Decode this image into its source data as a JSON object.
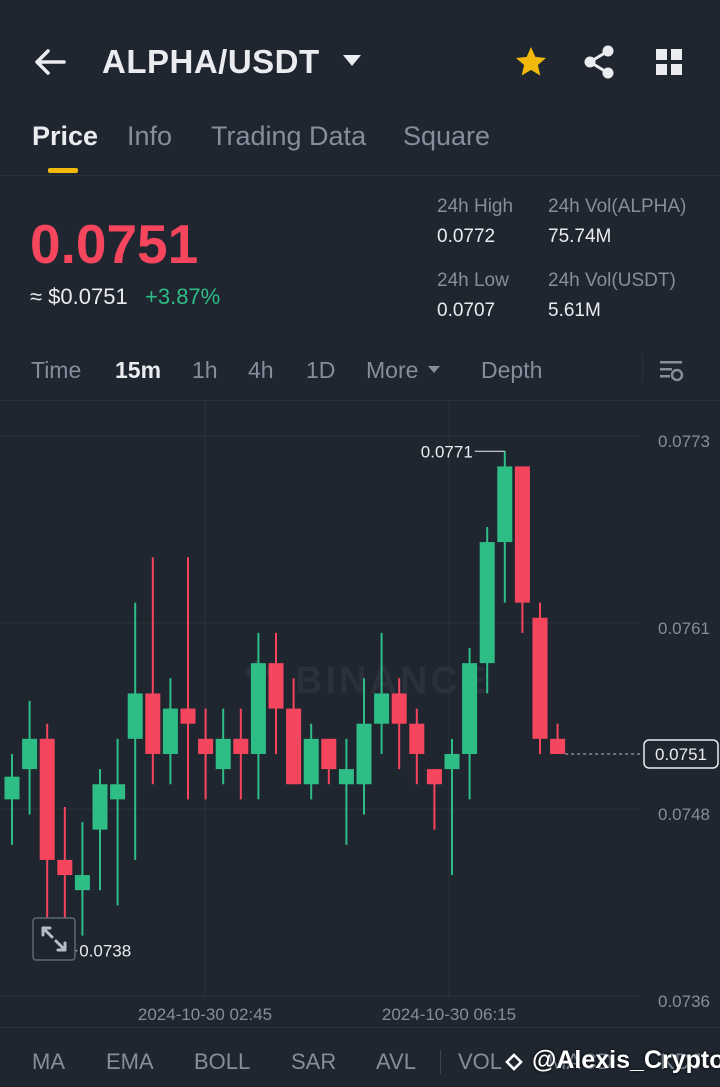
{
  "header": {
    "title": "ALPHA/USDT",
    "icons": [
      "back-arrow-icon",
      "chevron-down-icon",
      "star-icon",
      "share-icon",
      "grid-icon"
    ],
    "star_color": "#f0b90b"
  },
  "tabs": [
    {
      "label": "Price",
      "active": true
    },
    {
      "label": "Info",
      "active": false
    },
    {
      "label": "Trading Data",
      "active": false
    },
    {
      "label": "Square",
      "active": false
    }
  ],
  "price": {
    "last": "0.0751",
    "usd": "≈ $0.0751",
    "change": "+3.87%",
    "down_color": "#f6465d",
    "up_color": "#2ebd85"
  },
  "stats": {
    "high_label": "24h High",
    "high_value": "0.0772",
    "low_label": "24h Low",
    "low_value": "0.0707",
    "vol_base_label": "24h Vol(ALPHA)",
    "vol_base_value": "75.74M",
    "vol_quote_label": "24h Vol(USDT)",
    "vol_quote_value": "5.61M"
  },
  "intervals": {
    "items": [
      "Time",
      "15m",
      "1h",
      "4h",
      "1D",
      "More",
      "Depth"
    ],
    "active": "15m"
  },
  "chart_data": {
    "type": "candlestick",
    "y_ticks": [
      "0.0773",
      "0.0761",
      "0.0748",
      "0.0736"
    ],
    "x_ticks": [
      "2024-10-30 02:45",
      "2024-10-30 06:15"
    ],
    "high_label": "0.0771",
    "low_label": "0.0738",
    "last_price_label": "0.0751",
    "watermark": "BINANCE",
    "ylim": [
      0.0736,
      0.0773
    ],
    "candles": [
      {
        "o": 0.0748,
        "h": 0.0751,
        "l": 0.0745,
        "c": 0.07495
      },
      {
        "o": 0.075,
        "h": 0.07545,
        "l": 0.0747,
        "c": 0.0752
      },
      {
        "o": 0.0752,
        "h": 0.0753,
        "l": 0.0738,
        "c": 0.0744
      },
      {
        "o": 0.0744,
        "h": 0.07475,
        "l": 0.07395,
        "c": 0.0743
      },
      {
        "o": 0.0742,
        "h": 0.07465,
        "l": 0.0739,
        "c": 0.0743
      },
      {
        "o": 0.0746,
        "h": 0.075,
        "l": 0.0742,
        "c": 0.0749
      },
      {
        "o": 0.0748,
        "h": 0.0752,
        "l": 0.0741,
        "c": 0.0749
      },
      {
        "o": 0.0752,
        "h": 0.0761,
        "l": 0.0744,
        "c": 0.0755
      },
      {
        "o": 0.0755,
        "h": 0.0764,
        "l": 0.0749,
        "c": 0.0751
      },
      {
        "o": 0.0751,
        "h": 0.0756,
        "l": 0.0749,
        "c": 0.0754
      },
      {
        "o": 0.0754,
        "h": 0.0764,
        "l": 0.0748,
        "c": 0.0753
      },
      {
        "o": 0.0752,
        "h": 0.0754,
        "l": 0.0748,
        "c": 0.0751
      },
      {
        "o": 0.075,
        "h": 0.0754,
        "l": 0.0749,
        "c": 0.0752
      },
      {
        "o": 0.0752,
        "h": 0.0754,
        "l": 0.0748,
        "c": 0.0751
      },
      {
        "o": 0.0751,
        "h": 0.0759,
        "l": 0.0748,
        "c": 0.0757
      },
      {
        "o": 0.0757,
        "h": 0.0759,
        "l": 0.0751,
        "c": 0.0754
      },
      {
        "o": 0.0754,
        "h": 0.0756,
        "l": 0.0749,
        "c": 0.0749
      },
      {
        "o": 0.0749,
        "h": 0.0753,
        "l": 0.0748,
        "c": 0.0752
      },
      {
        "o": 0.0752,
        "h": 0.0752,
        "l": 0.0749,
        "c": 0.075
      },
      {
        "o": 0.0749,
        "h": 0.0752,
        "l": 0.0745,
        "c": 0.075
      },
      {
        "o": 0.0749,
        "h": 0.0756,
        "l": 0.0747,
        "c": 0.0753
      },
      {
        "o": 0.0753,
        "h": 0.0759,
        "l": 0.0751,
        "c": 0.0755
      },
      {
        "o": 0.0755,
        "h": 0.0756,
        "l": 0.075,
        "c": 0.0753
      },
      {
        "o": 0.0753,
        "h": 0.0754,
        "l": 0.0749,
        "c": 0.0751
      },
      {
        "o": 0.075,
        "h": 0.075,
        "l": 0.0746,
        "c": 0.0749
      },
      {
        "o": 0.075,
        "h": 0.0752,
        "l": 0.0743,
        "c": 0.0751
      },
      {
        "o": 0.0751,
        "h": 0.0758,
        "l": 0.0748,
        "c": 0.0757
      },
      {
        "o": 0.0757,
        "h": 0.0766,
        "l": 0.0755,
        "c": 0.0765
      },
      {
        "o": 0.0765,
        "h": 0.0771,
        "l": 0.0761,
        "c": 0.077
      },
      {
        "o": 0.077,
        "h": 0.077,
        "l": 0.0759,
        "c": 0.0761
      },
      {
        "o": 0.076,
        "h": 0.0761,
        "l": 0.0751,
        "c": 0.0752
      },
      {
        "o": 0.0752,
        "h": 0.0753,
        "l": 0.0751,
        "c": 0.0751
      }
    ]
  },
  "indicators": [
    "MA",
    "EMA",
    "BOLL",
    "SAR",
    "AVL",
    "VOL",
    "MACD",
    "KDJ"
  ],
  "watermark_text": "@Alexis_Crypto"
}
